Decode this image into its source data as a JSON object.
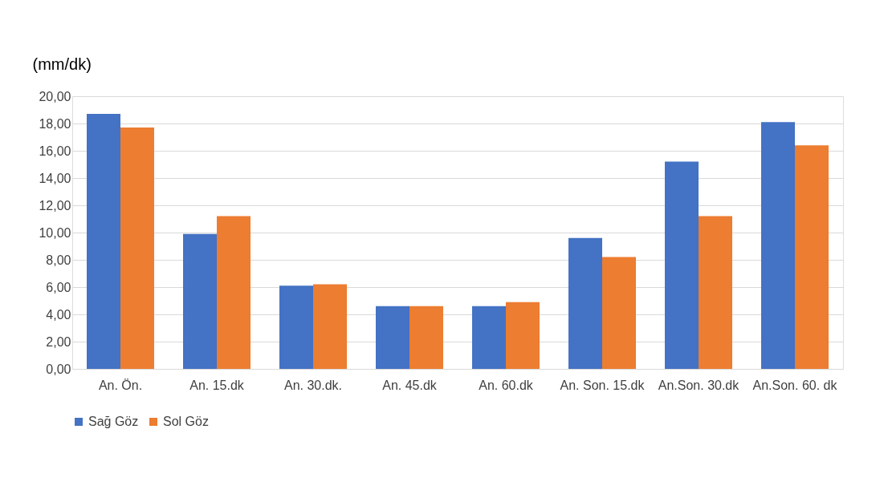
{
  "chart_data": {
    "type": "bar",
    "ylabel": "(mm/dk)",
    "categories": [
      "An. Ön.",
      "An. 15.dk",
      "An. 30.dk.",
      "An. 45.dk",
      "An. 60.dk",
      "An. Son. 15.dk",
      "An.Son. 30.dk",
      "An.Son. 60. dk"
    ],
    "series": [
      {
        "name": "Sağ Göz",
        "color": "#4472c4",
        "values": [
          18.7,
          9.9,
          6.1,
          4.6,
          4.6,
          9.6,
          15.2,
          18.1
        ]
      },
      {
        "name": "Sol Göz",
        "color": "#ed7d31",
        "values": [
          17.7,
          11.2,
          6.2,
          4.6,
          4.9,
          8.2,
          11.2,
          16.4
        ]
      }
    ],
    "ylim": [
      0,
      20
    ],
    "yticks": [
      {
        "value": 0,
        "label": "0,00"
      },
      {
        "value": 2,
        "label": "2,00"
      },
      {
        "value": 4,
        "label": "4,00"
      },
      {
        "value": 6,
        "label": "6,00"
      },
      {
        "value": 8,
        "label": "8,00"
      },
      {
        "value": 10,
        "label": "10,00"
      },
      {
        "value": 12,
        "label": "12,00"
      },
      {
        "value": 14,
        "label": "14,00"
      },
      {
        "value": 16,
        "label": "16,00"
      },
      {
        "value": 18,
        "label": "18,00"
      },
      {
        "value": 20,
        "label": "20,00"
      }
    ],
    "grid": "y",
    "legend": "bottom"
  }
}
